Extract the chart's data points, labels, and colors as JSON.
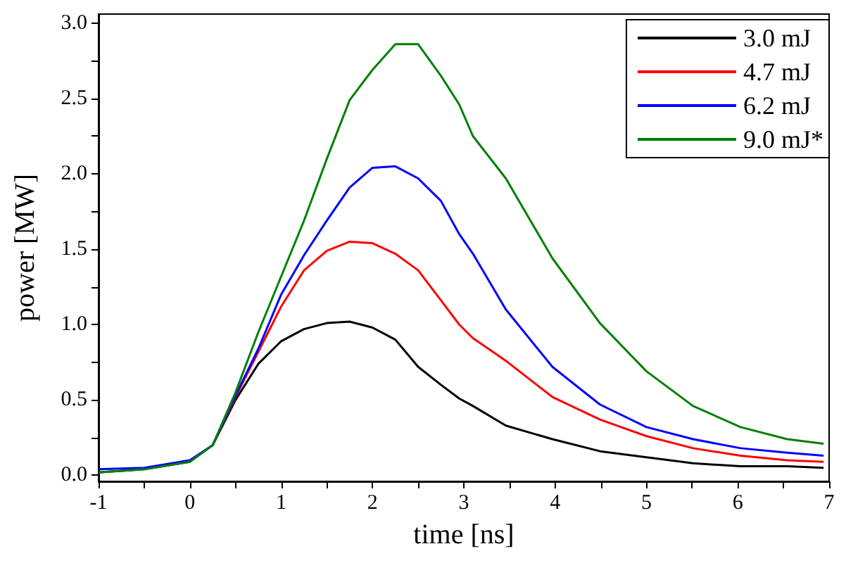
{
  "chart_data": {
    "type": "line",
    "xlabel": "time [ns]",
    "ylabel": "power [MW]",
    "xlim": [
      -1,
      7
    ],
    "ylim": [
      -0.04,
      3.06
    ],
    "xticks": [
      -1,
      {
        "value": -0.5,
        "label": null
      },
      0,
      {
        "value": 0.5,
        "label": null
      },
      1,
      {
        "value": 1.5,
        "label": null
      },
      2,
      {
        "value": 2.5,
        "label": null
      },
      3,
      {
        "value": 3.5,
        "label": null
      },
      4,
      {
        "value": 4.5,
        "label": null
      },
      5,
      {
        "value": 5.5,
        "label": null
      },
      6,
      {
        "value": 6.5,
        "label": null
      },
      7
    ],
    "yticks": [
      {
        "value": 0,
        "label": "0.0"
      },
      {
        "value": 0.25,
        "label": null
      },
      {
        "value": 0.5,
        "label": "0.5"
      },
      {
        "value": 0.75,
        "label": null
      },
      {
        "value": 1,
        "label": "1.0"
      },
      {
        "value": 1.25,
        "label": null
      },
      {
        "value": 1.5,
        "label": "1.5"
      },
      {
        "value": 1.75,
        "label": null
      },
      {
        "value": 2,
        "label": "2.0"
      },
      {
        "value": 2.25,
        "label": null
      },
      {
        "value": 2.5,
        "label": "2.5"
      },
      {
        "value": 2.75,
        "label": null
      },
      {
        "value": 3,
        "label": "3.0"
      }
    ],
    "x": [
      -1,
      -0.5,
      0,
      0.25,
      0.5,
      0.75,
      1,
      1.25,
      1.5,
      1.75,
      2,
      2.25,
      2.5,
      2.75,
      2.95,
      3.1,
      3.46,
      3.97,
      4.49,
      5,
      5.51,
      6.03,
      6.54,
      6.94
    ],
    "series": [
      {
        "name": "3.0 mJ",
        "color": "#000000",
        "values": [
          0.02,
          0.04,
          0.09,
          0.2,
          0.5,
          0.74,
          0.89,
          0.97,
          1.01,
          1.02,
          0.98,
          0.9,
          0.72,
          0.6,
          0.51,
          0.46,
          0.33,
          0.24,
          0.16,
          0.12,
          0.08,
          0.06,
          0.06,
          0.05
        ]
      },
      {
        "name": "4.7 mJ",
        "color": "#ff0000",
        "values": [
          null,
          null,
          null,
          0.2,
          0.52,
          0.82,
          1.12,
          1.36,
          1.49,
          1.55,
          1.54,
          1.47,
          1.36,
          1.16,
          1.0,
          0.91,
          0.76,
          0.52,
          0.37,
          0.26,
          0.18,
          0.13,
          0.1,
          0.09
        ]
      },
      {
        "name": "6.2 mJ",
        "color": "#0000ff",
        "values": [
          0.04,
          0.05,
          0.1,
          0.2,
          0.53,
          0.84,
          1.2,
          1.46,
          1.69,
          1.91,
          2.04,
          2.05,
          1.97,
          1.82,
          1.6,
          1.47,
          1.1,
          0.72,
          0.47,
          0.32,
          0.24,
          0.18,
          0.15,
          0.13
        ]
      },
      {
        "name": "9.0 mJ*",
        "color": "#008000",
        "values": [
          0.02,
          0.04,
          0.09,
          0.2,
          0.55,
          0.95,
          1.32,
          1.69,
          2.1,
          2.49,
          2.69,
          2.86,
          2.86,
          2.65,
          2.46,
          2.25,
          1.97,
          1.44,
          1.01,
          0.69,
          0.46,
          0.32,
          0.24,
          0.21
        ]
      }
    ],
    "legend": "top right",
    "grid": false,
    "marker": "none",
    "line_style": "solid"
  }
}
